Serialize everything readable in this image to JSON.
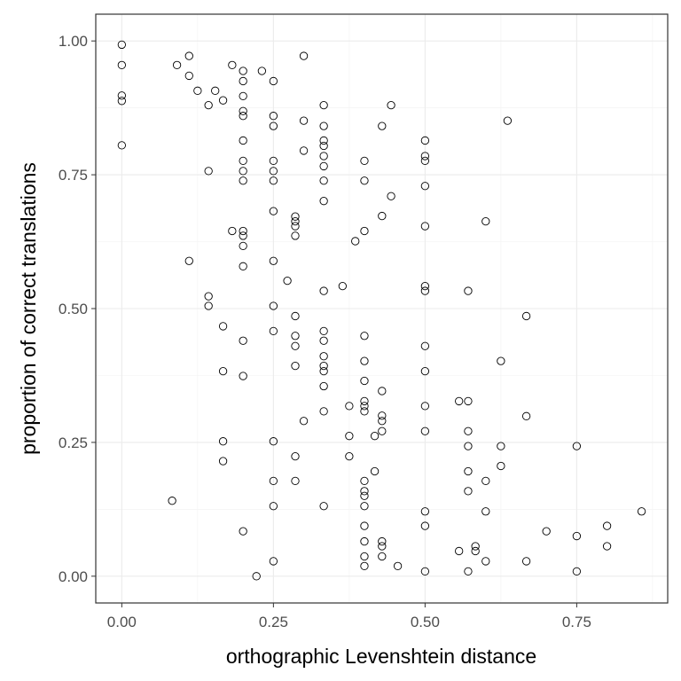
{
  "chart_data": {
    "type": "scatter",
    "title": "",
    "xlabel": "orthographic Levenshtein distance",
    "ylabel": "proportion of correct translations",
    "xlim": [
      -0.0429,
      0.9
    ],
    "ylim": [
      -0.05,
      1.05
    ],
    "xticks": [
      0,
      0.25,
      0.5,
      0.75
    ],
    "xtick_labels": [
      "0.00",
      "0.25",
      "0.50",
      "0.75"
    ],
    "yticks": [
      0,
      0.25,
      0.5,
      0.75,
      1
    ],
    "ytick_labels": [
      "0.00",
      "0.25",
      "0.50",
      "0.75",
      "1.00"
    ],
    "grid": true,
    "legend": "none",
    "marker": "open-circle",
    "points": [
      [
        0,
        0.993
      ],
      [
        0,
        0.955
      ],
      [
        0,
        0.898
      ],
      [
        0,
        0.888
      ],
      [
        0,
        0.805
      ],
      [
        0.083,
        0.141
      ],
      [
        0.091,
        0.955
      ],
      [
        0.111,
        0.972
      ],
      [
        0.111,
        0.935
      ],
      [
        0.111,
        0.589
      ],
      [
        0.125,
        0.907
      ],
      [
        0.143,
        0.88
      ],
      [
        0.143,
        0.757
      ],
      [
        0.143,
        0.523
      ],
      [
        0.143,
        0.505
      ],
      [
        0.154,
        0.907
      ],
      [
        0.167,
        0.889
      ],
      [
        0.167,
        0.467
      ],
      [
        0.167,
        0.383
      ],
      [
        0.167,
        0.252
      ],
      [
        0.167,
        0.215
      ],
      [
        0.182,
        0.955
      ],
      [
        0.182,
        0.645
      ],
      [
        0.2,
        0.944
      ],
      [
        0.2,
        0.925
      ],
      [
        0.2,
        0.897
      ],
      [
        0.2,
        0.869
      ],
      [
        0.2,
        0.86
      ],
      [
        0.2,
        0.814
      ],
      [
        0.2,
        0.776
      ],
      [
        0.2,
        0.757
      ],
      [
        0.2,
        0.739
      ],
      [
        0.2,
        0.645
      ],
      [
        0.2,
        0.636
      ],
      [
        0.2,
        0.617
      ],
      [
        0.2,
        0.579
      ],
      [
        0.2,
        0.44
      ],
      [
        0.2,
        0.374
      ],
      [
        0.2,
        0.084
      ],
      [
        0.222,
        0.0
      ],
      [
        0.231,
        0.944
      ],
      [
        0.25,
        0.925
      ],
      [
        0.25,
        0.86
      ],
      [
        0.25,
        0.841
      ],
      [
        0.25,
        0.776
      ],
      [
        0.25,
        0.757
      ],
      [
        0.25,
        0.739
      ],
      [
        0.25,
        0.682
      ],
      [
        0.25,
        0.589
      ],
      [
        0.25,
        0.505
      ],
      [
        0.25,
        0.458
      ],
      [
        0.25,
        0.252
      ],
      [
        0.25,
        0.178
      ],
      [
        0.25,
        0.131
      ],
      [
        0.25,
        0.028
      ],
      [
        0.273,
        0.552
      ],
      [
        0.286,
        0.672
      ],
      [
        0.286,
        0.663
      ],
      [
        0.286,
        0.654
      ],
      [
        0.286,
        0.636
      ],
      [
        0.286,
        0.486
      ],
      [
        0.286,
        0.449
      ],
      [
        0.286,
        0.43
      ],
      [
        0.286,
        0.393
      ],
      [
        0.286,
        0.224
      ],
      [
        0.286,
        0.178
      ],
      [
        0.3,
        0.972
      ],
      [
        0.3,
        0.851
      ],
      [
        0.3,
        0.795
      ],
      [
        0.3,
        0.29
      ],
      [
        0.333,
        0.88
      ],
      [
        0.333,
        0.841
      ],
      [
        0.333,
        0.814
      ],
      [
        0.333,
        0.804
      ],
      [
        0.333,
        0.785
      ],
      [
        0.333,
        0.766
      ],
      [
        0.333,
        0.739
      ],
      [
        0.333,
        0.701
      ],
      [
        0.333,
        0.533
      ],
      [
        0.333,
        0.458
      ],
      [
        0.333,
        0.44
      ],
      [
        0.333,
        0.411
      ],
      [
        0.333,
        0.393
      ],
      [
        0.333,
        0.383
      ],
      [
        0.333,
        0.355
      ],
      [
        0.333,
        0.308
      ],
      [
        0.333,
        0.131
      ],
      [
        0.364,
        0.542
      ],
      [
        0.375,
        0.318
      ],
      [
        0.375,
        0.262
      ],
      [
        0.375,
        0.224
      ],
      [
        0.385,
        0.626
      ],
      [
        0.4,
        0.776
      ],
      [
        0.4,
        0.739
      ],
      [
        0.4,
        0.645
      ],
      [
        0.4,
        0.449
      ],
      [
        0.4,
        0.402
      ],
      [
        0.4,
        0.365
      ],
      [
        0.4,
        0.327
      ],
      [
        0.4,
        0.318
      ],
      [
        0.4,
        0.308
      ],
      [
        0.4,
        0.178
      ],
      [
        0.4,
        0.159
      ],
      [
        0.4,
        0.15
      ],
      [
        0.4,
        0.131
      ],
      [
        0.4,
        0.094
      ],
      [
        0.4,
        0.065
      ],
      [
        0.4,
        0.037
      ],
      [
        0.4,
        0.019
      ],
      [
        0.417,
        0.262
      ],
      [
        0.417,
        0.196
      ],
      [
        0.429,
        0.841
      ],
      [
        0.429,
        0.673
      ],
      [
        0.429,
        0.346
      ],
      [
        0.429,
        0.3
      ],
      [
        0.429,
        0.29
      ],
      [
        0.429,
        0.271
      ],
      [
        0.429,
        0.065
      ],
      [
        0.429,
        0.056
      ],
      [
        0.429,
        0.037
      ],
      [
        0.444,
        0.88
      ],
      [
        0.444,
        0.71
      ],
      [
        0.455,
        0.019
      ],
      [
        0.5,
        0.814
      ],
      [
        0.5,
        0.785
      ],
      [
        0.5,
        0.776
      ],
      [
        0.5,
        0.729
      ],
      [
        0.5,
        0.654
      ],
      [
        0.5,
        0.542
      ],
      [
        0.5,
        0.533
      ],
      [
        0.5,
        0.43
      ],
      [
        0.5,
        0.383
      ],
      [
        0.5,
        0.318
      ],
      [
        0.5,
        0.271
      ],
      [
        0.5,
        0.121
      ],
      [
        0.5,
        0.094
      ],
      [
        0.5,
        0.009
      ],
      [
        0.556,
        0.327
      ],
      [
        0.556,
        0.047
      ],
      [
        0.571,
        0.533
      ],
      [
        0.571,
        0.327
      ],
      [
        0.571,
        0.271
      ],
      [
        0.571,
        0.243
      ],
      [
        0.571,
        0.196
      ],
      [
        0.571,
        0.159
      ],
      [
        0.571,
        0.009
      ],
      [
        0.583,
        0.056
      ],
      [
        0.583,
        0.047
      ],
      [
        0.6,
        0.663
      ],
      [
        0.6,
        0.178
      ],
      [
        0.6,
        0.121
      ],
      [
        0.6,
        0.028
      ],
      [
        0.625,
        0.402
      ],
      [
        0.625,
        0.243
      ],
      [
        0.625,
        0.206
      ],
      [
        0.636,
        0.851
      ],
      [
        0.667,
        0.486
      ],
      [
        0.667,
        0.299
      ],
      [
        0.667,
        0.028
      ],
      [
        0.7,
        0.084
      ],
      [
        0.75,
        0.243
      ],
      [
        0.75,
        0.075
      ],
      [
        0.75,
        0.009
      ],
      [
        0.8,
        0.094
      ],
      [
        0.8,
        0.056
      ],
      [
        0.857,
        0.121
      ]
    ]
  }
}
